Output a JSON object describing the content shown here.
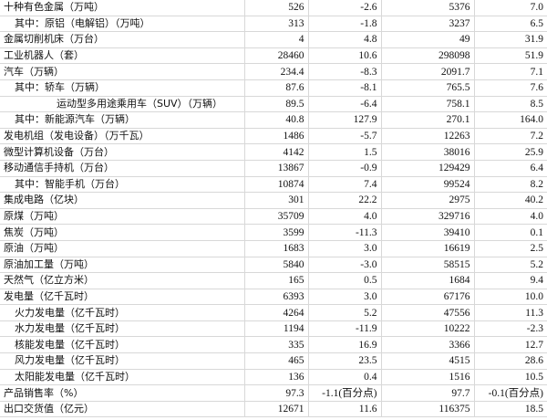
{
  "table": {
    "rows": [
      [
        "十种有色金属（万吨）",
        "526",
        "-2.6",
        "5376",
        "7.0"
      ],
      [
        "其中：原铝（电解铝）（万吨）",
        "313",
        "-1.8",
        "3237",
        "6.5"
      ],
      [
        "金属切削机床（万台）",
        "4",
        "4.8",
        "49",
        "31.9"
      ],
      [
        "工业机器人（套）",
        "28460",
        "10.6",
        "298098",
        "51.9"
      ],
      [
        "汽车（万辆）",
        "234.4",
        "-8.3",
        "2091.7",
        "7.1"
      ],
      [
        "其中：轿车（万辆）",
        "87.6",
        "-8.1",
        "765.5",
        "7.6"
      ],
      [
        "运动型多用途乘用车（SUV）（万辆）",
        "89.5",
        "-6.4",
        "758.1",
        "8.5"
      ],
      [
        "其中：新能源汽车（万辆）",
        "40.8",
        "127.9",
        "270.1",
        "164.0"
      ],
      [
        "发电机组（发电设备）（万千瓦）",
        "1486",
        "-5.7",
        "12263",
        "7.2"
      ],
      [
        "微型计算机设备（万台）",
        "4142",
        "1.5",
        "38016",
        "25.9"
      ],
      [
        "移动通信手持机（万台）",
        "13867",
        "-0.9",
        "129429",
        "6.4"
      ],
      [
        "其中：智能手机（万台）",
        "10874",
        "7.4",
        "99524",
        "8.2"
      ],
      [
        "集成电路（亿块）",
        "301",
        "22.2",
        "2975",
        "40.2"
      ],
      [
        "原煤（万吨）",
        "35709",
        "4.0",
        "329716",
        "4.0"
      ],
      [
        "焦炭（万吨）",
        "3599",
        "-11.3",
        "39410",
        "0.1"
      ],
      [
        "原油（万吨）",
        "1683",
        "3.0",
        "16619",
        "2.5"
      ],
      [
        "原油加工量（万吨）",
        "5840",
        "-3.0",
        "58515",
        "5.2"
      ],
      [
        "天然气（亿立方米）",
        "165",
        "0.5",
        "1684",
        "9.4"
      ],
      [
        "发电量（亿千瓦时）",
        "6393",
        "3.0",
        "67176",
        "10.0"
      ],
      [
        "火力发电量（亿千瓦时）",
        "4264",
        "5.2",
        "47556",
        "11.3"
      ],
      [
        "水力发电量（亿千瓦时）",
        "1194",
        "-11.9",
        "10222",
        "-2.3"
      ],
      [
        "核能发电量（亿千瓦时）",
        "335",
        "16.9",
        "3366",
        "12.7"
      ],
      [
        "风力发电量（亿千瓦时）",
        "465",
        "23.5",
        "4515",
        "28.6"
      ],
      [
        "太阳能发电量（亿千瓦时）",
        "136",
        "0.4",
        "1516",
        "10.5"
      ],
      [
        "产品销售率（%）",
        "97.3",
        "-1.1(百分点)",
        "97.7",
        "-0.1(百分点)"
      ],
      [
        "出口交货值（亿元）",
        "12671",
        "11.6",
        "116375",
        "18.5"
      ]
    ]
  }
}
